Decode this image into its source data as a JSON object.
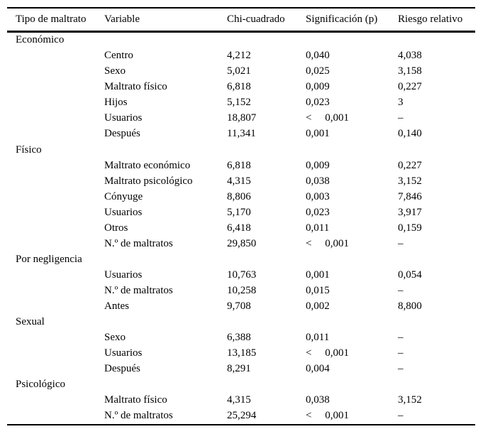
{
  "page": {
    "background": "#ffffff",
    "text_color": "#000000",
    "rule_color": "#000000"
  },
  "table": {
    "columns": [
      "Tipo de maltrato",
      "Variable",
      "Chi-cuadrado",
      "Significación (p)",
      "Riesgo relativo"
    ],
    "groups": [
      {
        "type": "Económico",
        "rows": [
          {
            "variable": "Centro",
            "chi_cuadrado": "4,212",
            "significacion": "0,040",
            "riesgo_relativo": "4,038"
          },
          {
            "variable": "Sexo",
            "chi_cuadrado": "5,021",
            "significacion": "0,025",
            "riesgo_relativo": "3,158"
          },
          {
            "variable": "Maltrato físico",
            "chi_cuadrado": "6,818",
            "significacion": "0,009",
            "riesgo_relativo": "0,227"
          },
          {
            "variable": "Hijos",
            "chi_cuadrado": "5,152",
            "significacion": "0,023",
            "riesgo_relativo": "3"
          },
          {
            "variable": "Usuarios",
            "chi_cuadrado": "18,807",
            "significacion": "<     0,001",
            "riesgo_relativo": "–"
          },
          {
            "variable": "Después",
            "chi_cuadrado": "11,341",
            "significacion": "0,001",
            "riesgo_relativo": "0,140"
          }
        ]
      },
      {
        "type": "Físico",
        "rows": [
          {
            "variable": "Maltrato económico",
            "chi_cuadrado": "6,818",
            "significacion": "0,009",
            "riesgo_relativo": "0,227"
          },
          {
            "variable": "Maltrato psicológico",
            "chi_cuadrado": "4,315",
            "significacion": "0,038",
            "riesgo_relativo": "3,152"
          },
          {
            "variable": "Cónyuge",
            "chi_cuadrado": "8,806",
            "significacion": "0,003",
            "riesgo_relativo": "7,846"
          },
          {
            "variable": "Usuarios",
            "chi_cuadrado": "5,170",
            "significacion": "0,023",
            "riesgo_relativo": "3,917"
          },
          {
            "variable": "Otros",
            "chi_cuadrado": "6,418",
            "significacion": "0,011",
            "riesgo_relativo": "0,159"
          },
          {
            "variable": "N.º de maltratos",
            "chi_cuadrado": "29,850",
            "significacion": "<     0,001",
            "riesgo_relativo": "–"
          }
        ]
      },
      {
        "type": "Por negligencia",
        "rows": [
          {
            "variable": "Usuarios",
            "chi_cuadrado": "10,763",
            "significacion": "0,001",
            "riesgo_relativo": "0,054"
          },
          {
            "variable": "N.º de maltratos",
            "chi_cuadrado": "10,258",
            "significacion": "0,015",
            "riesgo_relativo": "–"
          },
          {
            "variable": "Antes",
            "chi_cuadrado": "9,708",
            "significacion": "0,002",
            "riesgo_relativo": "8,800"
          }
        ]
      },
      {
        "type": "Sexual",
        "rows": [
          {
            "variable": "Sexo",
            "chi_cuadrado": "6,388",
            "significacion": "0,011",
            "riesgo_relativo": "–"
          },
          {
            "variable": "Usuarios",
            "chi_cuadrado": "13,185",
            "significacion": "<     0,001",
            "riesgo_relativo": "–"
          },
          {
            "variable": "Después",
            "chi_cuadrado": "8,291",
            "significacion": "0,004",
            "riesgo_relativo": "–"
          }
        ]
      },
      {
        "type": "Psicológico",
        "rows": [
          {
            "variable": "Maltrato físico",
            "chi_cuadrado": "4,315",
            "significacion": "0,038",
            "riesgo_relativo": "3,152"
          },
          {
            "variable": "N.º de maltratos",
            "chi_cuadrado": "25,294",
            "significacion": "<     0,001",
            "riesgo_relativo": "–"
          }
        ]
      }
    ]
  }
}
